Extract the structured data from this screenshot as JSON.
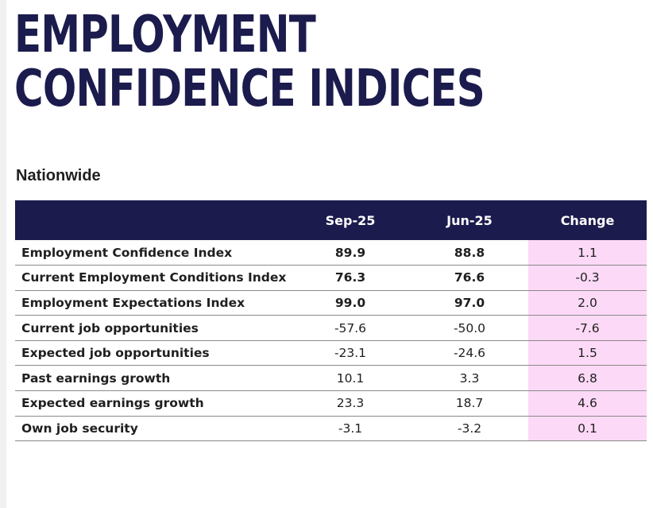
{
  "title_lines": [
    "EMPLOYMENT",
    "CONFIDENCE INDICES"
  ],
  "subtitle": "Nationwide",
  "colors": {
    "navy": "#1c1b4d",
    "change_highlight": "#fcd9f6"
  },
  "table": {
    "headers": [
      "",
      "Sep-25",
      "Jun-25",
      "Change"
    ],
    "rows": [
      {
        "label": "Employment Confidence Index",
        "sep": "89.9",
        "jun": "88.8",
        "change": "1.1",
        "bold": true
      },
      {
        "label": "Current Employment Conditions Index",
        "sep": "76.3",
        "jun": "76.6",
        "change": "-0.3",
        "bold": true
      },
      {
        "label": "Employment Expectations Index",
        "sep": "99.0",
        "jun": "97.0",
        "change": "2.0",
        "bold": true
      },
      {
        "label": "Current job opportunities",
        "sep": "-57.6",
        "jun": "-50.0",
        "change": "-7.6",
        "bold": false
      },
      {
        "label": "Expected job opportunities",
        "sep": "-23.1",
        "jun": "-24.6",
        "change": "1.5",
        "bold": false
      },
      {
        "label": "Past earnings growth",
        "sep": "10.1",
        "jun": "3.3",
        "change": "6.8",
        "bold": false
      },
      {
        "label": "Expected earnings growth",
        "sep": "23.3",
        "jun": "18.7",
        "change": "4.6",
        "bold": false
      },
      {
        "label": "Own job security",
        "sep": "-3.1",
        "jun": "-3.2",
        "change": "0.1",
        "bold": false
      }
    ]
  }
}
